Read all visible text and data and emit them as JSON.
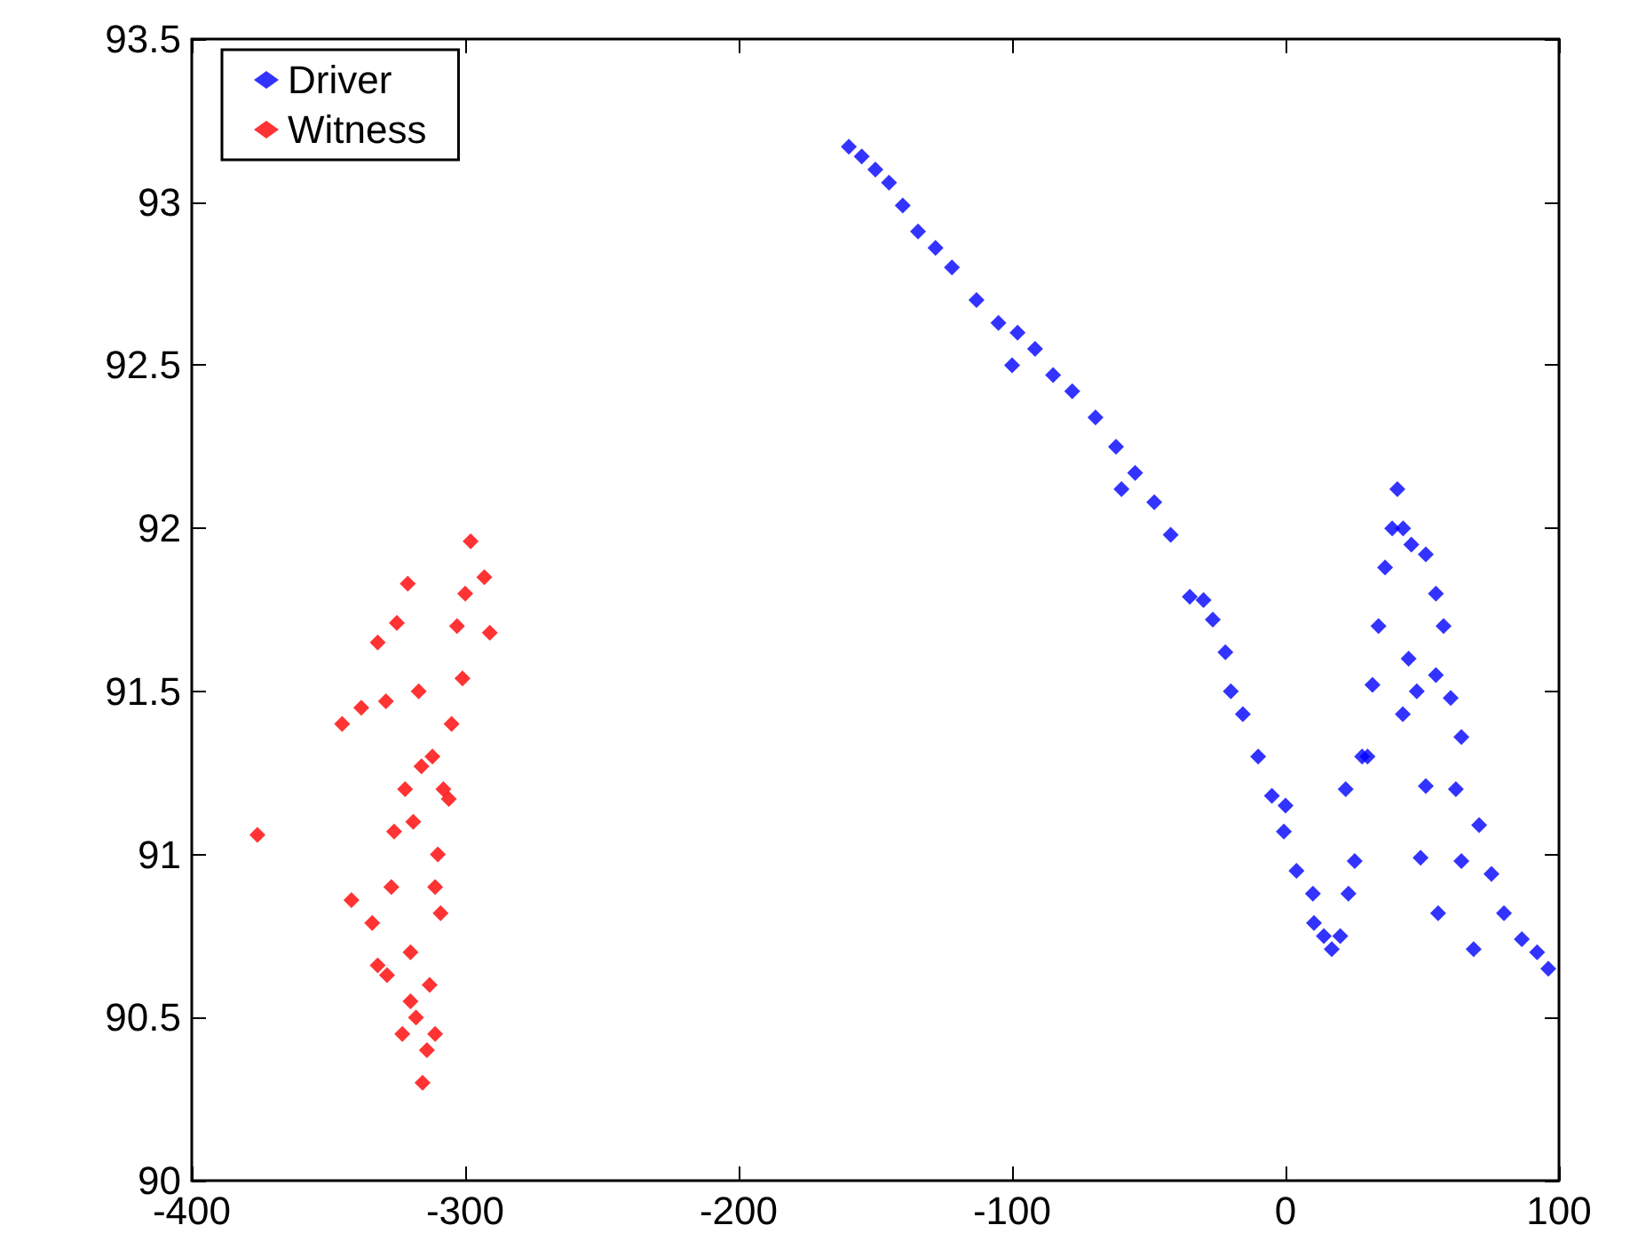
{
  "chart_data": {
    "type": "scatter",
    "xlim": [
      -400,
      100
    ],
    "xticks": [
      -400,
      -300,
      -200,
      -100,
      0,
      100
    ],
    "ylim": [
      90,
      93.5
    ],
    "yticks": [
      90,
      90.5,
      91,
      91.5,
      92,
      92.5,
      93,
      93.5
    ],
    "grid": false,
    "legend": "top left",
    "marker": "diamond",
    "series": [
      {
        "name": "Driver",
        "color": "#0000ff",
        "x": [
          -159.7,
          -155,
          -150,
          -145,
          -140,
          -134.4,
          -128,
          -122,
          -113,
          -105,
          -98,
          -91.6,
          -85,
          -78,
          -69.5,
          -62,
          -55,
          -48,
          -42,
          -35,
          -30,
          -26.6,
          -22,
          -15.6,
          -10,
          -5,
          -0.6,
          4,
          10.4,
          14,
          16.9,
          20,
          23,
          25.3,
          28,
          31.8,
          34,
          36.4,
          39,
          40.9,
          43,
          46,
          51.3,
          55,
          57.8,
          60.4,
          42.9,
          48,
          64.3,
          51.3,
          62.3,
          70.8,
          49.4,
          64.3,
          55.8,
          75.3,
          79.9,
          68.8,
          86.4,
          92,
          96.1,
          -100,
          -60,
          -20,
          0,
          10,
          22,
          30,
          45,
          55
        ],
        "values": [
          93.17,
          93.14,
          93.1,
          93.06,
          92.99,
          92.91,
          92.86,
          92.8,
          92.7,
          92.63,
          92.6,
          92.55,
          92.47,
          92.42,
          92.34,
          92.25,
          92.17,
          92.08,
          91.98,
          91.79,
          91.78,
          91.72,
          91.62,
          91.43,
          91.3,
          91.18,
          91.07,
          90.95,
          90.79,
          90.75,
          90.71,
          90.75,
          90.88,
          90.98,
          91.3,
          91.52,
          91.7,
          91.88,
          92.0,
          92.12,
          92.0,
          91.95,
          91.92,
          91.8,
          91.7,
          91.48,
          91.43,
          91.5,
          91.36,
          91.21,
          91.2,
          91.09,
          90.99,
          90.98,
          90.82,
          90.94,
          90.82,
          90.71,
          90.74,
          90.7,
          90.65,
          92.5,
          92.12,
          91.5,
          91.15,
          90.88,
          91.2,
          91.3,
          91.6,
          91.55
        ]
      },
      {
        "name": "Witness",
        "color": "#ff0000",
        "x": [
          -298,
          -293,
          -291,
          -301,
          -306,
          -309,
          -311,
          -315.6,
          -321,
          -316,
          -326,
          -327,
          -328.6,
          -323,
          -376,
          -341.6,
          -345,
          -338,
          -329,
          -332,
          -325,
          -334,
          -332,
          -312,
          -310,
          -305,
          -303,
          -308,
          -318,
          -320,
          -319,
          -313,
          -311,
          -314,
          -317,
          -322,
          -320,
          -300
        ],
        "values": [
          91.96,
          91.85,
          91.68,
          91.54,
          91.17,
          90.82,
          90.45,
          90.3,
          91.83,
          91.27,
          91.07,
          90.9,
          90.63,
          90.45,
          91.06,
          90.86,
          91.4,
          91.45,
          91.47,
          91.65,
          91.71,
          90.79,
          90.66,
          91.3,
          91.0,
          91.4,
          91.7,
          91.2,
          90.5,
          90.7,
          91.1,
          90.6,
          90.9,
          90.4,
          91.5,
          91.2,
          90.55,
          91.8
        ]
      }
    ]
  }
}
